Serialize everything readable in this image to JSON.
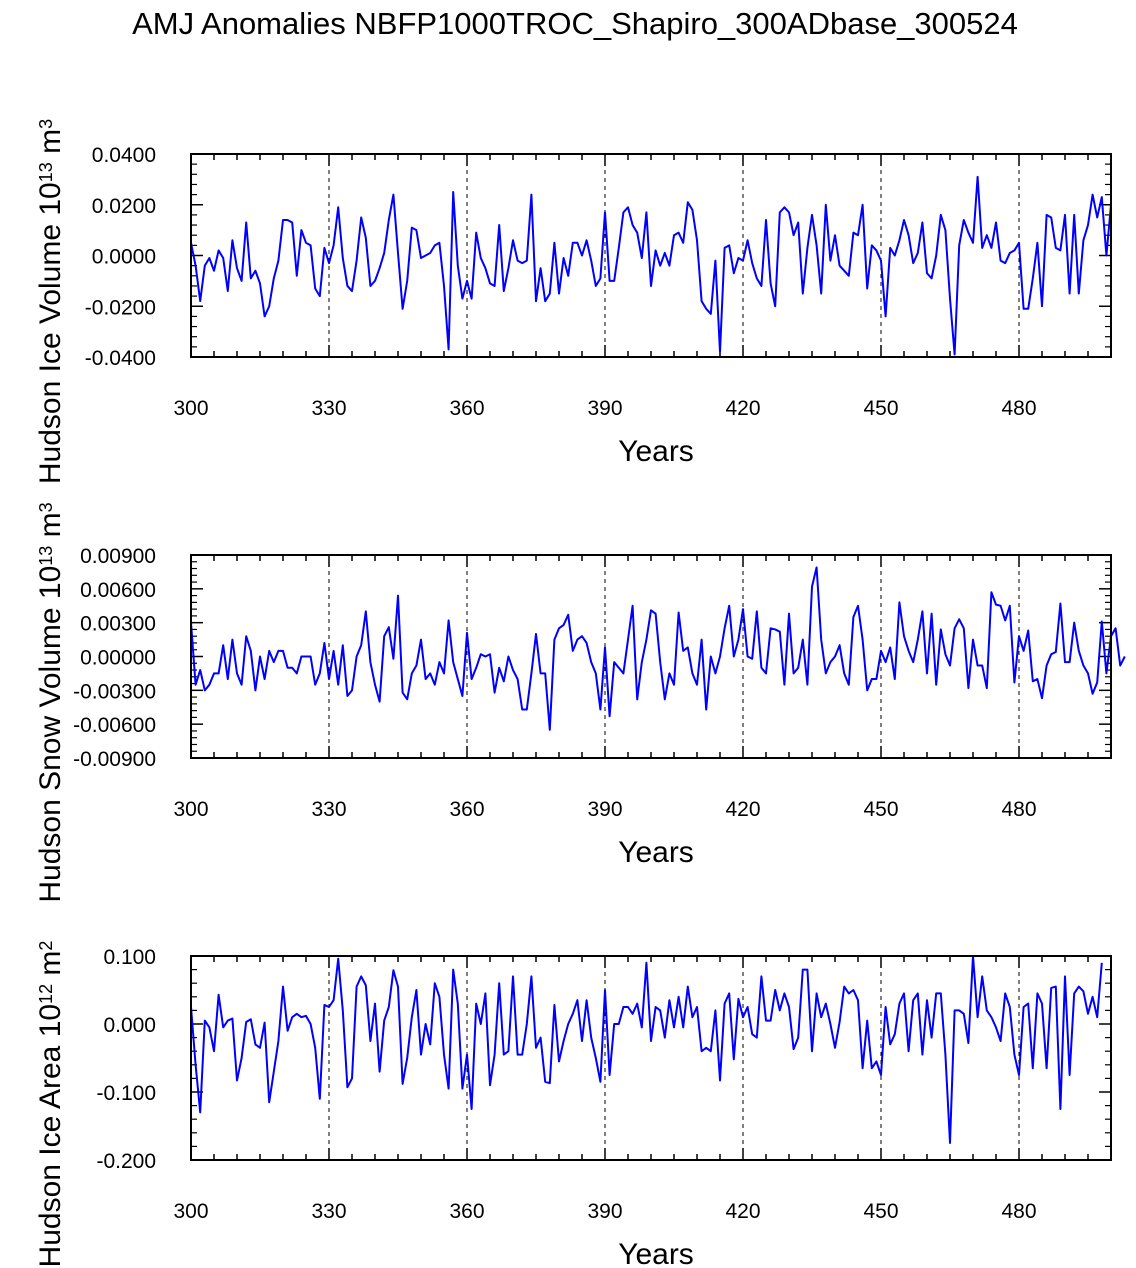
{
  "title": "AMJ Anomalies NBFP1000TROC_Shapiro_300ADbase_300524",
  "colors": {
    "line": "#0000ff",
    "axis": "#000000",
    "grid": "#000000"
  },
  "chart_data": [
    {
      "type": "line",
      "ylabel_main": "Hudson Ice Volume 10",
      "ylabel_exp": "13",
      "ylabel_unit": " m",
      "ylabel_unit_exp": "3",
      "xlabel": "Years",
      "xlim": [
        300,
        500
      ],
      "ylim": [
        -0.04,
        0.04
      ],
      "xticks": [
        300,
        330,
        360,
        390,
        420,
        450,
        480
      ],
      "xtick_labels": [
        "300",
        "330",
        "360",
        "390",
        "420",
        "450",
        "480"
      ],
      "yticks": [
        -0.04,
        -0.02,
        0.0,
        0.02,
        0.04
      ],
      "ytick_labels": [
        "-0.0400",
        "-0.0200",
        "0.0000",
        "0.0200",
        "0.0400"
      ],
      "vlines": [
        330,
        360,
        390,
        420,
        450,
        480
      ],
      "x_start": 300,
      "values": [
        0.005,
        -0.004,
        -0.018,
        -0.004,
        -0.001,
        -0.006,
        0.002,
        -0.001,
        -0.014,
        0.006,
        -0.005,
        -0.01,
        0.013,
        -0.009,
        -0.006,
        -0.011,
        -0.024,
        -0.02,
        -0.009,
        -0.002,
        0.014,
        0.014,
        0.013,
        -0.008,
        0.01,
        0.005,
        0.004,
        -0.013,
        -0.016,
        0.003,
        -0.003,
        0.004,
        0.019,
        -0.001,
        -0.012,
        -0.014,
        -0.002,
        0.015,
        0.007,
        -0.012,
        -0.01,
        -0.005,
        0.001,
        0.014,
        0.024,
        0.001,
        -0.021,
        -0.01,
        0.011,
        0.01,
        -0.001,
        0.0,
        0.001,
        0.004,
        0.005,
        -0.012,
        -0.037,
        0.025,
        -0.004,
        -0.017,
        -0.01,
        -0.017,
        0.009,
        -0.001,
        -0.005,
        -0.011,
        -0.012,
        0.012,
        -0.014,
        -0.005,
        0.006,
        -0.002,
        -0.003,
        -0.002,
        0.024,
        -0.018,
        -0.005,
        -0.018,
        -0.015,
        0.005,
        -0.015,
        -0.001,
        -0.008,
        0.005,
        0.005,
        0.0,
        0.006,
        -0.002,
        -0.012,
        -0.009,
        0.017,
        -0.01,
        -0.01,
        0.003,
        0.017,
        0.019,
        0.012,
        0.009,
        -0.001,
        0.017,
        -0.012,
        0.002,
        -0.004,
        0.001,
        -0.004,
        0.008,
        0.009,
        0.005,
        0.021,
        0.018,
        0.006,
        -0.018,
        -0.021,
        -0.023,
        -0.002,
        -0.038,
        0.003,
        0.004,
        -0.007,
        -0.001,
        -0.002,
        0.006,
        -0.003,
        -0.009,
        -0.012,
        0.014,
        -0.011,
        -0.02,
        0.017,
        0.019,
        0.017,
        0.008,
        0.013,
        -0.015,
        0.003,
        0.016,
        0.004,
        -0.015,
        0.02,
        -0.002,
        0.008,
        -0.004,
        -0.006,
        -0.008,
        0.009,
        0.008,
        0.02,
        -0.013,
        0.004,
        0.002,
        -0.002,
        -0.024,
        0.003,
        0.0,
        0.006,
        0.014,
        0.008,
        -0.003,
        0.001,
        0.013,
        -0.007,
        -0.009,
        0.0,
        0.016,
        0.01,
        -0.017,
        -0.039,
        0.004,
        0.014,
        0.009,
        0.005,
        0.031,
        0.003,
        0.008,
        0.003,
        0.013,
        -0.002,
        -0.003,
        0.001,
        0.002,
        0.005,
        -0.021,
        -0.021,
        -0.009,
        0.005,
        -0.02,
        0.016,
        0.015,
        0.003,
        0.002,
        0.016,
        -0.015,
        0.016,
        -0.015,
        0.006,
        0.012,
        0.024,
        0.015,
        0.023,
        0.0,
        0.02
      ]
    },
    {
      "type": "line",
      "ylabel_main": "Hudson Snow Volume 10",
      "ylabel_exp": "13",
      "ylabel_unit": " m",
      "ylabel_unit_exp": "3",
      "xlabel": "Years",
      "xlim": [
        300,
        500
      ],
      "ylim": [
        -0.009,
        0.009
      ],
      "xticks": [
        300,
        330,
        360,
        390,
        420,
        450,
        480
      ],
      "xtick_labels": [
        "300",
        "330",
        "360",
        "390",
        "420",
        "450",
        "480"
      ],
      "yticks": [
        -0.009,
        -0.006,
        -0.003,
        0.0,
        0.003,
        0.006,
        0.009
      ],
      "ytick_labels": [
        "-0.00900",
        "-0.00600",
        "-0.00300",
        "0.00000",
        "0.00300",
        "0.00600",
        "0.00900"
      ],
      "vlines": [
        330,
        360,
        390,
        420,
        450,
        480
      ],
      "x_start": 300,
      "values": [
        0.003,
        -0.0025,
        -0.0012,
        -0.003,
        -0.0025,
        -0.0015,
        -0.0015,
        0.001,
        -0.002,
        0.0015,
        -0.0015,
        -0.0025,
        0.0018,
        0.0005,
        -0.003,
        0.0,
        -0.002,
        0.0005,
        -0.0005,
        0.0005,
        0.0005,
        -0.001,
        -0.001,
        -0.0015,
        0.0,
        0.0,
        0.0,
        -0.0025,
        -0.0015,
        0.0012,
        -0.002,
        0.0005,
        -0.0025,
        0.001,
        -0.0035,
        -0.003,
        0.0,
        0.001,
        0.004,
        -0.0005,
        -0.0025,
        -0.004,
        0.0018,
        0.0026,
        -0.0002,
        0.0054,
        -0.0032,
        -0.0038,
        -0.0015,
        -0.0008,
        0.0015,
        -0.002,
        -0.0015,
        -0.0025,
        -0.0005,
        -0.0015,
        0.0032,
        -0.0005,
        -0.002,
        -0.0035,
        0.0021,
        -0.002,
        -0.001,
        0.0002,
        0.0,
        0.0002,
        -0.0032,
        -0.001,
        -0.0022,
        0.0,
        -0.0012,
        -0.002,
        -0.0047,
        -0.0047,
        -0.0015,
        0.002,
        -0.0015,
        -0.0015,
        -0.0065,
        0.0015,
        0.0025,
        0.0028,
        0.0037,
        0.0005,
        0.0015,
        0.0018,
        0.0012,
        -0.0005,
        -0.0015,
        -0.0047,
        0.0008,
        -0.0053,
        -0.0005,
        -0.001,
        -0.0015,
        0.0015,
        0.0045,
        -0.0038,
        -0.0005,
        0.0015,
        0.0041,
        0.0038,
        -0.0005,
        -0.0038,
        -0.0015,
        -0.0025,
        0.0039,
        0.0005,
        0.0008,
        -0.0015,
        -0.0025,
        0.0015,
        -0.0047,
        0.0,
        -0.0015,
        0.0,
        0.0025,
        0.0045,
        0.0,
        0.0015,
        0.0042,
        0.0,
        -0.0002,
        0.004,
        -0.001,
        -0.0015,
        0.0025,
        0.0024,
        0.0022,
        -0.0025,
        0.0038,
        -0.0015,
        -0.001,
        0.0015,
        -0.0025,
        0.0062,
        0.0079,
        0.0015,
        -0.0015,
        -0.0005,
        0.0,
        0.001,
        -0.0015,
        -0.0025,
        0.0035,
        0.0045,
        0.0015,
        -0.003,
        -0.002,
        -0.002,
        0.0005,
        -0.0005,
        0.0008,
        -0.002,
        0.0048,
        0.0018,
        0.0005,
        -0.0005,
        0.0015,
        0.004,
        -0.0015,
        0.0038,
        -0.0025,
        0.0024,
        0.0002,
        -0.0008,
        0.0025,
        0.0033,
        0.0025,
        -0.0028,
        0.0015,
        -0.0008,
        -0.0008,
        -0.0028,
        0.0057,
        0.0046,
        0.0045,
        0.0032,
        0.0045,
        -0.0023,
        0.0018,
        0.0005,
        0.0023,
        -0.0022,
        -0.002,
        -0.0037,
        -0.0008,
        0.0002,
        0.0004,
        0.0047,
        -0.0005,
        -0.0005,
        0.003,
        0.0005,
        -0.0008,
        -0.0015,
        -0.0033,
        -0.0023,
        0.0031,
        -0.0015,
        0.0018,
        0.0025,
        -0.0008,
        0.0
      ]
    },
    {
      "type": "line",
      "ylabel_main": "Hudson Ice Area 10",
      "ylabel_exp": "12",
      "ylabel_unit": " m",
      "ylabel_unit_exp": "2",
      "xlabel": "Years",
      "xlim": [
        300,
        500
      ],
      "ylim": [
        -0.2,
        0.1
      ],
      "xticks": [
        300,
        330,
        360,
        390,
        420,
        450,
        480
      ],
      "xtick_labels": [
        "300",
        "330",
        "360",
        "390",
        "420",
        "450",
        "480"
      ],
      "yticks": [
        -0.2,
        -0.1,
        0.0,
        0.1
      ],
      "ytick_labels": [
        "-0.200",
        "-0.100",
        "0.000",
        "0.100"
      ],
      "vlines": [
        330,
        360,
        390,
        420,
        450,
        480
      ],
      "x_start": 300,
      "values": [
        0.025,
        -0.06,
        -0.13,
        0.005,
        -0.005,
        -0.04,
        0.043,
        -0.005,
        0.005,
        0.008,
        -0.083,
        -0.05,
        0.003,
        0.007,
        -0.03,
        -0.035,
        0.002,
        -0.115,
        -0.07,
        -0.025,
        0.055,
        -0.01,
        0.01,
        0.015,
        0.01,
        0.012,
        0.0,
        -0.035,
        -0.11,
        0.028,
        0.025,
        0.035,
        0.096,
        0.02,
        -0.093,
        -0.08,
        0.055,
        0.07,
        0.057,
        -0.025,
        0.03,
        -0.07,
        0.005,
        0.025,
        0.079,
        0.055,
        -0.088,
        -0.05,
        0.01,
        0.05,
        -0.045,
        0.0,
        -0.03,
        0.06,
        0.04,
        -0.045,
        -0.095,
        0.08,
        0.03,
        -0.095,
        -0.045,
        -0.125,
        0.03,
        0.0,
        0.045,
        -0.09,
        -0.045,
        0.06,
        -0.045,
        -0.04,
        0.07,
        -0.045,
        -0.045,
        0.0,
        0.07,
        -0.035,
        -0.02,
        -0.085,
        -0.087,
        0.028,
        -0.055,
        -0.025,
        0.0,
        0.015,
        0.035,
        -0.025,
        0.035,
        -0.02,
        -0.05,
        -0.085,
        0.05,
        -0.075,
        0.0,
        0.0,
        0.025,
        0.025,
        0.015,
        0.03,
        -0.005,
        0.09,
        -0.025,
        0.025,
        0.02,
        -0.02,
        0.035,
        -0.005,
        0.04,
        -0.005,
        0.055,
        0.01,
        0.025,
        -0.04,
        -0.035,
        -0.04,
        0.02,
        -0.083,
        0.03,
        0.045,
        -0.052,
        0.037,
        0.01,
        0.025,
        -0.015,
        -0.02,
        0.07,
        0.005,
        0.005,
        0.05,
        0.02,
        0.045,
        0.025,
        -0.037,
        -0.02,
        0.08,
        0.08,
        -0.04,
        0.045,
        0.01,
        0.03,
        0.0,
        -0.035,
        0.003,
        0.055,
        0.045,
        0.05,
        0.035,
        -0.065,
        0.005,
        -0.065,
        -0.055,
        -0.075,
        0.025,
        -0.03,
        -0.015,
        0.03,
        0.045,
        -0.04,
        0.035,
        0.045,
        -0.045,
        0.035,
        -0.02,
        0.045,
        0.045,
        -0.045,
        -0.175,
        0.02,
        0.02,
        0.015,
        -0.028,
        0.1,
        0.01,
        0.07,
        0.02,
        0.01,
        -0.005,
        -0.025,
        0.045,
        0.025,
        -0.045,
        -0.075,
        0.025,
        0.03,
        -0.065,
        0.045,
        0.03,
        -0.065,
        0.053,
        0.055,
        -0.125,
        0.07,
        -0.075,
        0.045,
        0.055,
        0.048,
        0.015,
        0.04,
        0.01,
        0.09
      ]
    }
  ]
}
